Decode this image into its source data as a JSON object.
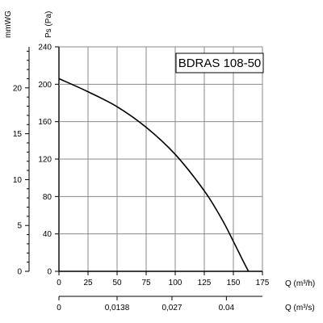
{
  "chart_data": {
    "type": "line",
    "title": "BDRAS 108-50",
    "ylabel": "Ps (Pa)",
    "ylabel_secondary": "mmWG",
    "xlabel": "Q (m³/h)",
    "xlabel_secondary": "Q (m³/s)",
    "xlim": [
      0,
      175
    ],
    "ylim": [
      0,
      240
    ],
    "x_ticks": [
      "0",
      "25",
      "50",
      "75",
      "100",
      "125",
      "150",
      "175"
    ],
    "y_ticks": [
      "0",
      "40",
      "80",
      "120",
      "160",
      "200",
      "240"
    ],
    "mmwg_ticks": [
      "0",
      "5",
      "10",
      "15",
      "20"
    ],
    "m3s_ticks": [
      {
        "x": 0,
        "label": "0"
      },
      {
        "x": 50,
        "label": "0,0138"
      },
      {
        "x": 97.2,
        "label": "0,027"
      },
      {
        "x": 144,
        "label": "0.04"
      }
    ],
    "grid": true,
    "series": [
      {
        "x": [
          0,
          25,
          50,
          75,
          100,
          125,
          140,
          150,
          158,
          163
        ],
        "y": [
          206,
          192,
          176,
          154,
          125,
          86,
          56,
          32,
          12,
          0
        ]
      }
    ]
  }
}
